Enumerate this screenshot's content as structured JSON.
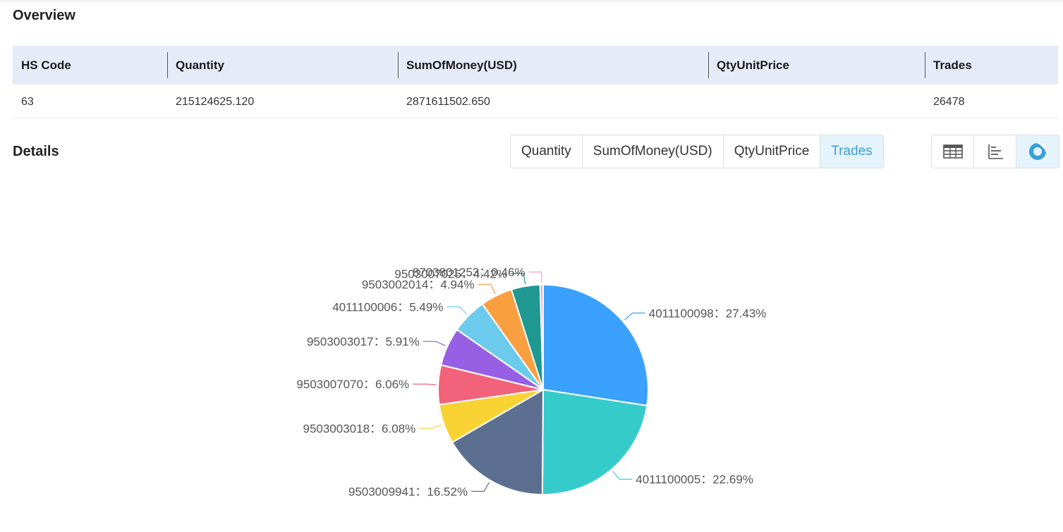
{
  "overview": {
    "title": "Overview",
    "headers": [
      "HS Code",
      "Quantity",
      "SumOfMoney(USD)",
      "QtyUnitPrice",
      "Trades"
    ],
    "row": [
      "63",
      "215124625.120",
      "2871611502.650",
      "",
      "26478"
    ]
  },
  "details": {
    "title": "Details",
    "metric_tabs": [
      "Quantity",
      "SumOfMoney(USD)",
      "QtyUnitPrice",
      "Trades"
    ],
    "active_tab": "Trades",
    "view_buttons": [
      "table-view-icon",
      "bar-chart-view-icon",
      "pie-chart-view-icon"
    ],
    "active_view": "pie-chart-view-icon"
  },
  "colors": {
    "accent": "#3a9fd8",
    "header_bg": "#e6ebf7",
    "active_bg": "#e5f3fb"
  },
  "chart_data": {
    "type": "pie",
    "slices": [
      {
        "label": "4011100098",
        "value": 27.43,
        "display": "4011100098：27.43%",
        "color": "#3aa1ff"
      },
      {
        "label": "4011100005",
        "value": 22.69,
        "display": "4011100005：22.69%",
        "color": "#36cbcb"
      },
      {
        "label": "9503009941",
        "value": 16.52,
        "display": "9503009941：16.52%",
        "color": "#5d6f90"
      },
      {
        "label": "9503003018",
        "value": 6.08,
        "display": "9503003018：6.08%",
        "color": "#f9d334"
      },
      {
        "label": "9503007070",
        "value": 6.06,
        "display": "9503007070：6.06%",
        "color": "#f2637b"
      },
      {
        "label": "9503003017",
        "value": 5.91,
        "display": "9503003017：5.91%",
        "color": "#975fe4"
      },
      {
        "label": "4011100006",
        "value": 5.49,
        "display": "4011100006：5.49%",
        "color": "#6ccbec"
      },
      {
        "label": "9503002014",
        "value": 4.94,
        "display": "9503002014：4.94%",
        "color": "#fa9f40"
      },
      {
        "label": "9503007025",
        "value": 4.42,
        "display": "9503007025：4.42%",
        "color": "#1f9891"
      },
      {
        "label": "8703801253",
        "value": 0.46,
        "display": "8703801253：0.46%",
        "color": "#ff9ec0"
      }
    ]
  }
}
